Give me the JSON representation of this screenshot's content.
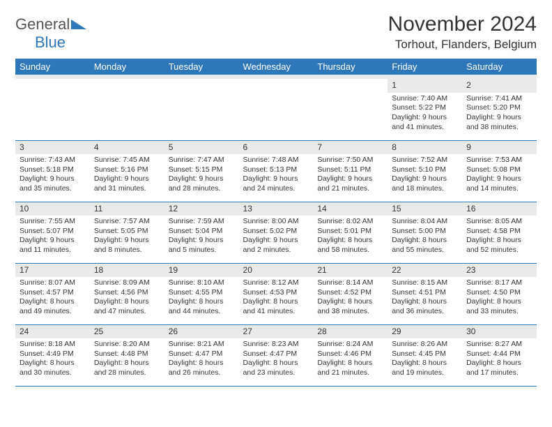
{
  "brand": {
    "general": "General",
    "blue": "Blue"
  },
  "title": "November 2024",
  "location": "Torhout, Flanders, Belgium",
  "colors": {
    "header_bg": "#2e77b8",
    "header_text": "#ffffff",
    "daynum_bg": "#e9eaec",
    "rule": "#2e77b8",
    "text": "#333333",
    "background": "#ffffff"
  },
  "typography": {
    "title_fontsize": 30,
    "location_fontsize": 17,
    "dayheader_fontsize": 13,
    "cell_fontsize": 10.5
  },
  "day_headers": [
    "Sunday",
    "Monday",
    "Tuesday",
    "Wednesday",
    "Thursday",
    "Friday",
    "Saturday"
  ],
  "weeks": [
    [
      null,
      null,
      null,
      null,
      null,
      {
        "n": "1",
        "sunrise": "Sunrise: 7:40 AM",
        "sunset": "Sunset: 5:22 PM",
        "daylight": "Daylight: 9 hours and 41 minutes."
      },
      {
        "n": "2",
        "sunrise": "Sunrise: 7:41 AM",
        "sunset": "Sunset: 5:20 PM",
        "daylight": "Daylight: 9 hours and 38 minutes."
      }
    ],
    [
      {
        "n": "3",
        "sunrise": "Sunrise: 7:43 AM",
        "sunset": "Sunset: 5:18 PM",
        "daylight": "Daylight: 9 hours and 35 minutes."
      },
      {
        "n": "4",
        "sunrise": "Sunrise: 7:45 AM",
        "sunset": "Sunset: 5:16 PM",
        "daylight": "Daylight: 9 hours and 31 minutes."
      },
      {
        "n": "5",
        "sunrise": "Sunrise: 7:47 AM",
        "sunset": "Sunset: 5:15 PM",
        "daylight": "Daylight: 9 hours and 28 minutes."
      },
      {
        "n": "6",
        "sunrise": "Sunrise: 7:48 AM",
        "sunset": "Sunset: 5:13 PM",
        "daylight": "Daylight: 9 hours and 24 minutes."
      },
      {
        "n": "7",
        "sunrise": "Sunrise: 7:50 AM",
        "sunset": "Sunset: 5:11 PM",
        "daylight": "Daylight: 9 hours and 21 minutes."
      },
      {
        "n": "8",
        "sunrise": "Sunrise: 7:52 AM",
        "sunset": "Sunset: 5:10 PM",
        "daylight": "Daylight: 9 hours and 18 minutes."
      },
      {
        "n": "9",
        "sunrise": "Sunrise: 7:53 AM",
        "sunset": "Sunset: 5:08 PM",
        "daylight": "Daylight: 9 hours and 14 minutes."
      }
    ],
    [
      {
        "n": "10",
        "sunrise": "Sunrise: 7:55 AM",
        "sunset": "Sunset: 5:07 PM",
        "daylight": "Daylight: 9 hours and 11 minutes."
      },
      {
        "n": "11",
        "sunrise": "Sunrise: 7:57 AM",
        "sunset": "Sunset: 5:05 PM",
        "daylight": "Daylight: 9 hours and 8 minutes."
      },
      {
        "n": "12",
        "sunrise": "Sunrise: 7:59 AM",
        "sunset": "Sunset: 5:04 PM",
        "daylight": "Daylight: 9 hours and 5 minutes."
      },
      {
        "n": "13",
        "sunrise": "Sunrise: 8:00 AM",
        "sunset": "Sunset: 5:02 PM",
        "daylight": "Daylight: 9 hours and 2 minutes."
      },
      {
        "n": "14",
        "sunrise": "Sunrise: 8:02 AM",
        "sunset": "Sunset: 5:01 PM",
        "daylight": "Daylight: 8 hours and 58 minutes."
      },
      {
        "n": "15",
        "sunrise": "Sunrise: 8:04 AM",
        "sunset": "Sunset: 5:00 PM",
        "daylight": "Daylight: 8 hours and 55 minutes."
      },
      {
        "n": "16",
        "sunrise": "Sunrise: 8:05 AM",
        "sunset": "Sunset: 4:58 PM",
        "daylight": "Daylight: 8 hours and 52 minutes."
      }
    ],
    [
      {
        "n": "17",
        "sunrise": "Sunrise: 8:07 AM",
        "sunset": "Sunset: 4:57 PM",
        "daylight": "Daylight: 8 hours and 49 minutes."
      },
      {
        "n": "18",
        "sunrise": "Sunrise: 8:09 AM",
        "sunset": "Sunset: 4:56 PM",
        "daylight": "Daylight: 8 hours and 47 minutes."
      },
      {
        "n": "19",
        "sunrise": "Sunrise: 8:10 AM",
        "sunset": "Sunset: 4:55 PM",
        "daylight": "Daylight: 8 hours and 44 minutes."
      },
      {
        "n": "20",
        "sunrise": "Sunrise: 8:12 AM",
        "sunset": "Sunset: 4:53 PM",
        "daylight": "Daylight: 8 hours and 41 minutes."
      },
      {
        "n": "21",
        "sunrise": "Sunrise: 8:14 AM",
        "sunset": "Sunset: 4:52 PM",
        "daylight": "Daylight: 8 hours and 38 minutes."
      },
      {
        "n": "22",
        "sunrise": "Sunrise: 8:15 AM",
        "sunset": "Sunset: 4:51 PM",
        "daylight": "Daylight: 8 hours and 36 minutes."
      },
      {
        "n": "23",
        "sunrise": "Sunrise: 8:17 AM",
        "sunset": "Sunset: 4:50 PM",
        "daylight": "Daylight: 8 hours and 33 minutes."
      }
    ],
    [
      {
        "n": "24",
        "sunrise": "Sunrise: 8:18 AM",
        "sunset": "Sunset: 4:49 PM",
        "daylight": "Daylight: 8 hours and 30 minutes."
      },
      {
        "n": "25",
        "sunrise": "Sunrise: 8:20 AM",
        "sunset": "Sunset: 4:48 PM",
        "daylight": "Daylight: 8 hours and 28 minutes."
      },
      {
        "n": "26",
        "sunrise": "Sunrise: 8:21 AM",
        "sunset": "Sunset: 4:47 PM",
        "daylight": "Daylight: 8 hours and 26 minutes."
      },
      {
        "n": "27",
        "sunrise": "Sunrise: 8:23 AM",
        "sunset": "Sunset: 4:47 PM",
        "daylight": "Daylight: 8 hours and 23 minutes."
      },
      {
        "n": "28",
        "sunrise": "Sunrise: 8:24 AM",
        "sunset": "Sunset: 4:46 PM",
        "daylight": "Daylight: 8 hours and 21 minutes."
      },
      {
        "n": "29",
        "sunrise": "Sunrise: 8:26 AM",
        "sunset": "Sunset: 4:45 PM",
        "daylight": "Daylight: 8 hours and 19 minutes."
      },
      {
        "n": "30",
        "sunrise": "Sunrise: 8:27 AM",
        "sunset": "Sunset: 4:44 PM",
        "daylight": "Daylight: 8 hours and 17 minutes."
      }
    ]
  ]
}
